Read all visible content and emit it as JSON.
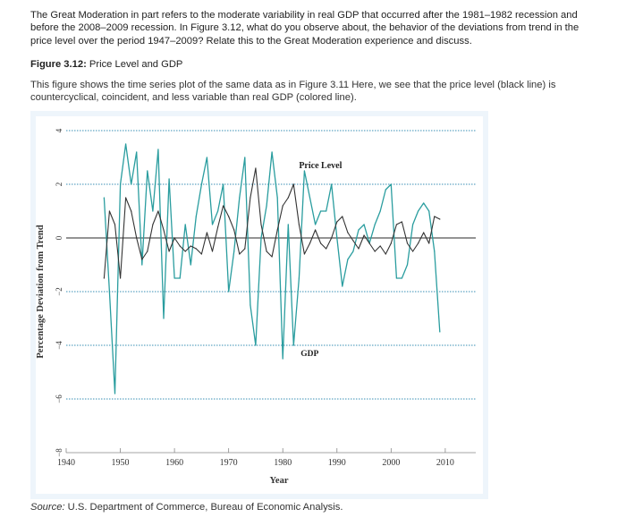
{
  "question": {
    "text": "The Great Moderation in part refers to the moderate variability in real GDP that occurred after the 1981–1982 recession and before the 2008–2009 recession. In Figure 3.12, what do you observe about, the behavior of the deviations from trend in the price level over the period 1947–2009? Relate this to the Great Moderation experience and discuss."
  },
  "figure": {
    "label": "Figure 3.12:",
    "title": "Price Level and GDP",
    "caption": "This figure shows the time series plot of the same data as in Figure 3.11 Here, we see that the price level (black line) is countercyclical, coincident, and less variable than real GDP (colored line)."
  },
  "source": {
    "label": "Source:",
    "text": "U.S. Department of Commerce, Bureau of Economic Analysis."
  },
  "colors": {
    "gdp": "#2a9d9f",
    "price": "#333333",
    "grid": "#3a8fb5",
    "background": "#eef5fb"
  },
  "chart_data": {
    "type": "line",
    "xlabel": "Year",
    "ylabel": "Percentage Deviation from Trend",
    "xlim": [
      1940,
      2012
    ],
    "ylim": [
      -8,
      4
    ],
    "x_ticks": [
      1940,
      1950,
      1960,
      1970,
      1980,
      1990,
      2000,
      2010
    ],
    "y_ticks": [
      4,
      2,
      0,
      -2,
      -4,
      -6,
      -8
    ],
    "grid": "horizontal dotted",
    "annotations": [
      "Price Level",
      "GDP"
    ],
    "series": [
      {
        "name": "Price Level",
        "color": "#333333",
        "x": [
          1947,
          1948,
          1949,
          1950,
          1951,
          1952,
          1953,
          1954,
          1955,
          1956,
          1957,
          1958,
          1959,
          1960,
          1961,
          1962,
          1963,
          1964,
          1965,
          1966,
          1967,
          1968,
          1969,
          1970,
          1971,
          1972,
          1973,
          1974,
          1975,
          1976,
          1977,
          1978,
          1979,
          1980,
          1981,
          1982,
          1983,
          1984,
          1985,
          1986,
          1987,
          1988,
          1989,
          1990,
          1991,
          1992,
          1993,
          1994,
          1995,
          1996,
          1997,
          1998,
          1999,
          2000,
          2001,
          2002,
          2003,
          2004,
          2005,
          2006,
          2007,
          2008,
          2009
        ],
        "values": [
          -1.5,
          1.0,
          0.5,
          -1.5,
          1.5,
          1.0,
          0.0,
          -0.8,
          -0.5,
          0.5,
          1.0,
          0.3,
          -0.5,
          0.0,
          -0.3,
          -0.5,
          -0.3,
          -0.4,
          -0.6,
          0.2,
          -0.5,
          0.4,
          1.2,
          0.8,
          0.3,
          -0.6,
          -0.4,
          1.5,
          2.6,
          0.5,
          -0.5,
          -0.7,
          0.3,
          1.2,
          1.5,
          2.0,
          0.5,
          -0.6,
          -0.2,
          0.3,
          -0.2,
          -0.4,
          0.0,
          0.6,
          0.8,
          0.2,
          -0.1,
          -0.4,
          0.1,
          -0.2,
          -0.5,
          -0.3,
          -0.6,
          -0.2,
          0.5,
          0.6,
          -0.2,
          -0.5,
          -0.2,
          0.2,
          -0.2,
          0.8,
          0.7
        ]
      },
      {
        "name": "GDP",
        "color": "#2a9d9f",
        "x": [
          1947,
          1948,
          1949,
          1950,
          1951,
          1952,
          1953,
          1954,
          1955,
          1956,
          1957,
          1958,
          1959,
          1960,
          1961,
          1962,
          1963,
          1964,
          1965,
          1966,
          1967,
          1968,
          1969,
          1970,
          1971,
          1972,
          1973,
          1974,
          1975,
          1976,
          1977,
          1978,
          1979,
          1980,
          1981,
          1982,
          1983,
          1984,
          1985,
          1986,
          1987,
          1988,
          1989,
          1990,
          1991,
          1992,
          1993,
          1994,
          1995,
          1996,
          1997,
          1998,
          1999,
          2000,
          2001,
          2002,
          2003,
          2004,
          2005,
          2006,
          2007,
          2008,
          2009
        ],
        "values": [
          1.5,
          -2.0,
          -5.8,
          2.0,
          3.5,
          2.0,
          3.2,
          -1.0,
          2.5,
          1.0,
          3.3,
          -3.0,
          2.2,
          -1.5,
          -1.5,
          0.5,
          -1.0,
          0.8,
          2.0,
          3.0,
          0.5,
          1.0,
          2.0,
          -2.0,
          -0.5,
          1.5,
          3.0,
          -2.5,
          -4.0,
          0.0,
          1.2,
          3.2,
          1.5,
          -4.5,
          0.5,
          -4.0,
          -1.5,
          2.5,
          1.5,
          0.5,
          1.0,
          1.0,
          2.0,
          0.0,
          -1.8,
          -0.8,
          -0.5,
          0.3,
          0.5,
          -0.2,
          0.5,
          1.0,
          1.8,
          2.0,
          -1.5,
          -1.5,
          -1.0,
          0.5,
          1.0,
          1.3,
          1.0,
          -0.5,
          -3.5
        ]
      }
    ]
  }
}
